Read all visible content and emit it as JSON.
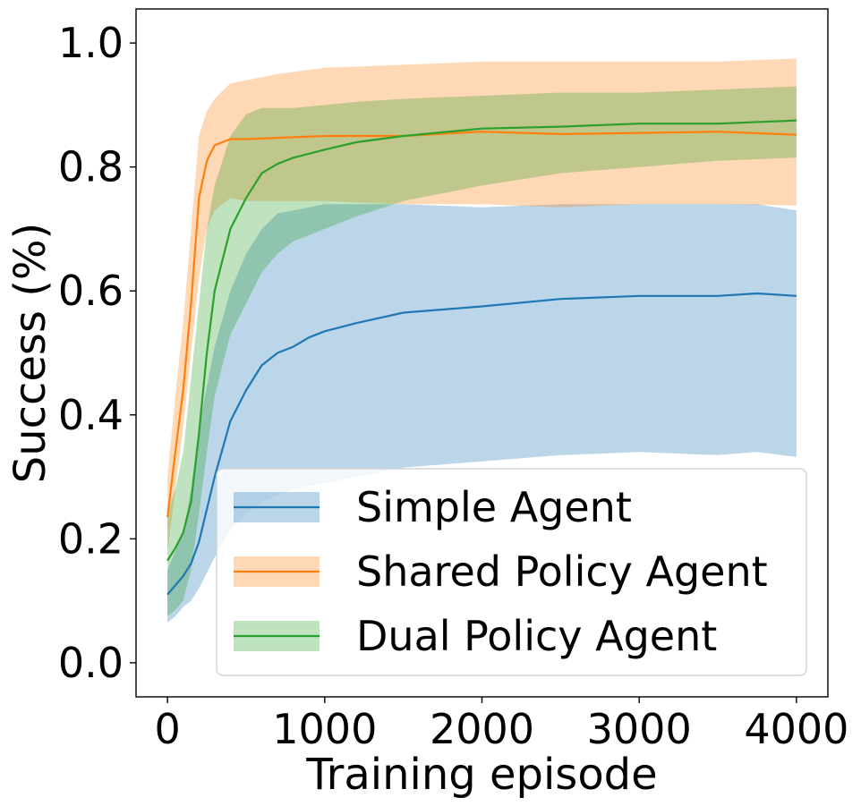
{
  "chart_data": {
    "type": "line",
    "xlabel": "Training episode",
    "ylabel": "Success (%)",
    "xlim": [
      -200,
      4200
    ],
    "ylim": [
      -0.055,
      1.055
    ],
    "xticks": [
      0,
      1000,
      2000,
      3000,
      4000
    ],
    "xtick_labels": [
      "0",
      "1000",
      "2000",
      "3000",
      "4000"
    ],
    "yticks": [
      0.0,
      0.2,
      0.4,
      0.6,
      0.8,
      1.0
    ],
    "ytick_labels": [
      "0.0",
      "0.2",
      "0.4",
      "0.6",
      "0.8",
      "1.0"
    ],
    "grid": false,
    "legend_position": "lower-right",
    "series": [
      {
        "name": "Simple Agent",
        "color": "#1f77b4",
        "band_color": "#1f77b4",
        "x": [
          0,
          50,
          100,
          150,
          200,
          300,
          400,
          500,
          600,
          700,
          800,
          900,
          1000,
          1200,
          1500,
          2000,
          2500,
          3000,
          3500,
          3750,
          4000
        ],
        "mean": [
          0.11,
          0.125,
          0.14,
          0.16,
          0.195,
          0.3,
          0.39,
          0.44,
          0.48,
          0.5,
          0.51,
          0.525,
          0.535,
          0.548,
          0.565,
          0.575,
          0.587,
          0.592,
          0.592,
          0.596,
          0.592
        ],
        "lower": [
          0.065,
          0.075,
          0.09,
          0.1,
          0.12,
          0.17,
          0.215,
          0.24,
          0.26,
          0.27,
          0.28,
          0.285,
          0.29,
          0.3,
          0.315,
          0.325,
          0.335,
          0.34,
          0.335,
          0.34,
          0.332
        ],
        "upper": [
          0.15,
          0.18,
          0.21,
          0.28,
          0.38,
          0.51,
          0.6,
          0.66,
          0.7,
          0.725,
          0.73,
          0.735,
          0.74,
          0.74,
          0.74,
          0.735,
          0.74,
          0.74,
          0.74,
          0.74,
          0.73
        ]
      },
      {
        "name": "Shared Policy Agent",
        "color": "#ff7f0e",
        "band_color": "#ff7f0e",
        "x": [
          0,
          50,
          100,
          150,
          200,
          250,
          300,
          400,
          500,
          700,
          1000,
          1500,
          2000,
          2500,
          3000,
          3500,
          4000
        ],
        "mean": [
          0.235,
          0.34,
          0.44,
          0.58,
          0.75,
          0.81,
          0.835,
          0.845,
          0.845,
          0.847,
          0.85,
          0.85,
          0.857,
          0.853,
          0.855,
          0.857,
          0.852
        ],
        "lower": [
          0.18,
          0.28,
          0.38,
          0.5,
          0.62,
          0.7,
          0.73,
          0.75,
          0.745,
          0.745,
          0.745,
          0.74,
          0.74,
          0.735,
          0.74,
          0.74,
          0.738
        ],
        "upper": [
          0.3,
          0.43,
          0.55,
          0.7,
          0.85,
          0.89,
          0.91,
          0.935,
          0.94,
          0.95,
          0.96,
          0.965,
          0.97,
          0.97,
          0.97,
          0.97,
          0.975
        ]
      },
      {
        "name": "Dual Policy Agent",
        "color": "#2ca02c",
        "band_color": "#2ca02c",
        "x": [
          0,
          50,
          100,
          150,
          200,
          250,
          300,
          400,
          500,
          600,
          700,
          800,
          1000,
          1200,
          1500,
          2000,
          2500,
          3000,
          3500,
          4000
        ],
        "mean": [
          0.165,
          0.185,
          0.21,
          0.26,
          0.37,
          0.5,
          0.6,
          0.7,
          0.75,
          0.79,
          0.805,
          0.815,
          0.828,
          0.84,
          0.85,
          0.862,
          0.865,
          0.87,
          0.87,
          0.875
        ],
        "lower": [
          0.075,
          0.085,
          0.1,
          0.15,
          0.24,
          0.34,
          0.43,
          0.53,
          0.58,
          0.63,
          0.66,
          0.68,
          0.7,
          0.72,
          0.745,
          0.77,
          0.79,
          0.8,
          0.81,
          0.815
        ],
        "upper": [
          0.24,
          0.28,
          0.34,
          0.46,
          0.58,
          0.7,
          0.77,
          0.85,
          0.885,
          0.895,
          0.895,
          0.895,
          0.9,
          0.905,
          0.91,
          0.915,
          0.92,
          0.92,
          0.925,
          0.93
        ]
      }
    ]
  }
}
